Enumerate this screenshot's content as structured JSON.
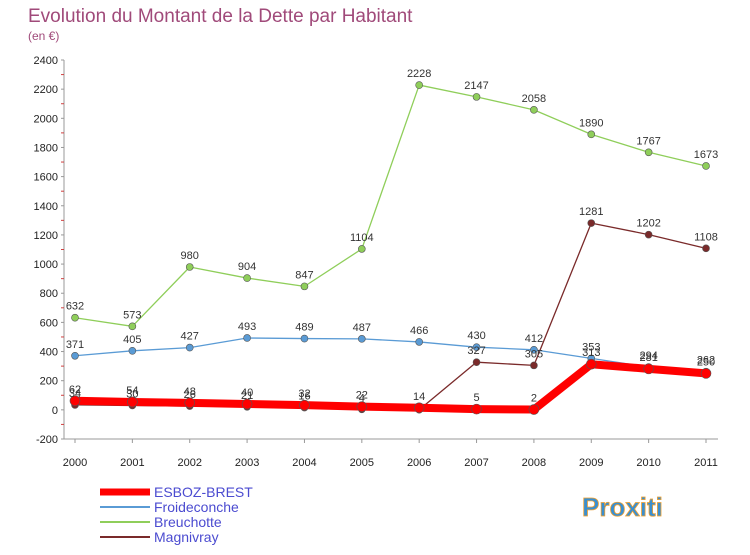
{
  "chart_data": {
    "type": "line",
    "title": "Evolution du Montant de la Dette par Habitant",
    "subtitle": "(en €)",
    "x": [
      "2000",
      "2001",
      "2002",
      "2003",
      "2004",
      "2005",
      "2006",
      "2007",
      "2008",
      "2009",
      "2010",
      "2011"
    ],
    "ylim": [
      -200,
      2400
    ],
    "yticks": [
      -200,
      0,
      200,
      400,
      600,
      800,
      1000,
      1200,
      1400,
      1600,
      1800,
      2000,
      2200,
      2400
    ],
    "grid": false,
    "legend_position": "bottom-left",
    "series": [
      {
        "name": "ESBOZ-BREST",
        "color": "#ff0000",
        "values": [
          62,
          54,
          48,
          40,
          32,
          22,
          14,
          5,
          2,
          313,
          281,
          250
        ],
        "labels_shown": [
          true,
          true,
          true,
          true,
          true,
          true,
          true,
          true,
          true,
          true,
          true,
          true
        ]
      },
      {
        "name": "Froideconche",
        "color": "#5a9bd5",
        "values": [
          371,
          405,
          427,
          493,
          489,
          487,
          466,
          430,
          412,
          353,
          294,
          262
        ],
        "labels_shown": [
          true,
          true,
          true,
          true,
          true,
          true,
          true,
          true,
          true,
          true,
          true,
          true
        ]
      },
      {
        "name": "Breuchotte",
        "color": "#8fce5a",
        "values": [
          632,
          573,
          980,
          904,
          847,
          1104,
          2228,
          2147,
          2058,
          1890,
          1767,
          1673
        ],
        "labels_shown": [
          true,
          true,
          true,
          true,
          true,
          true,
          true,
          true,
          true,
          true,
          true,
          true
        ]
      },
      {
        "name": "Magnivray",
        "color": "#7a2a2a",
        "values": [
          34,
          30,
          26,
          21,
          16,
          4,
          1,
          327,
          305,
          1281,
          1202,
          1108
        ],
        "labels_shown": [
          true,
          true,
          true,
          true,
          true,
          true,
          false,
          true,
          true,
          true,
          true,
          true
        ]
      }
    ]
  },
  "branding": {
    "logo_text": "Proxiti"
  }
}
